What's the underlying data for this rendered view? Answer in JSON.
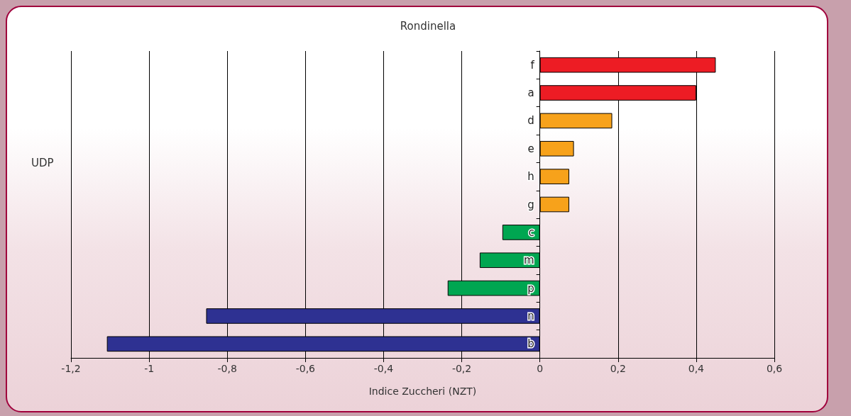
{
  "chart_data": {
    "type": "bar",
    "orientation": "horizontal",
    "title": "Rondinella",
    "xlabel": "Indice Zuccheri (NZT)",
    "ylabel": "UDP",
    "categories": [
      "f",
      "a",
      "d",
      "e",
      "h",
      "g",
      "c",
      "m",
      "p",
      "n",
      "b"
    ],
    "values": [
      0.45,
      0.4,
      0.185,
      0.087,
      0.075,
      0.075,
      -0.096,
      -0.154,
      -0.236,
      -0.854,
      -1.108
    ],
    "colors": [
      "#ed1c24",
      "#ed1c24",
      "#f7a21b",
      "#f7a21b",
      "#f7a21b",
      "#f7a21b",
      "#00a651",
      "#00a651",
      "#00a651",
      "#2e3192",
      "#2e3192"
    ],
    "xlim": [
      -1.2,
      0.6
    ],
    "xticks": [
      {
        "value": -1.2,
        "label": "-1,2"
      },
      {
        "value": -1,
        "label": "-1"
      },
      {
        "value": -0.8,
        "label": "-0,8"
      },
      {
        "value": -0.6,
        "label": "-0,6"
      },
      {
        "value": -0.4,
        "label": "-0,4"
      },
      {
        "value": -0.2,
        "label": "-0,2"
      },
      {
        "value": 0,
        "label": "0"
      },
      {
        "value": 0.2,
        "label": "0,2"
      },
      {
        "value": 0.4,
        "label": "0,4"
      },
      {
        "value": 0.6,
        "label": "0,6"
      }
    ],
    "grid": "x"
  }
}
